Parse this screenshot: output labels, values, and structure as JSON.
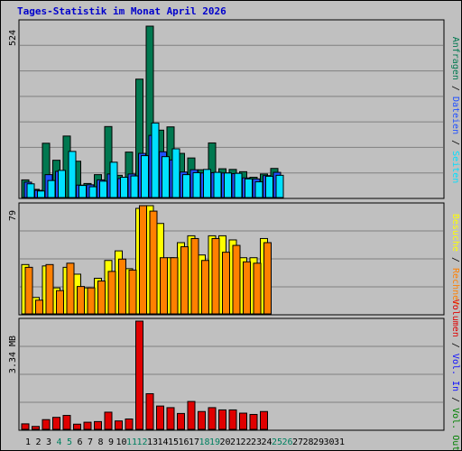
{
  "title": "Tages-Statistik im Monat April 2026",
  "chart_data": [
    {
      "type": "bar",
      "name": "requests-panel",
      "categories": [
        "1",
        "2",
        "3",
        "4",
        "5",
        "6",
        "7",
        "8",
        "9",
        "10",
        "11",
        "12",
        "13",
        "14",
        "15",
        "16",
        "17",
        "18",
        "19",
        "20",
        "21",
        "22",
        "23",
        "24",
        "25",
        "26",
        "27",
        "28",
        "29",
        "30",
        "31"
      ],
      "ymax_label": "524",
      "ymax": 524,
      "series": [
        {
          "name": "Anfragen",
          "color": "#007850",
          "values": [
            54,
            25,
            166,
            114,
            188,
            111,
            43,
            70,
            217,
            68,
            139,
            362,
            524,
            206,
            216,
            135,
            121,
            85,
            167,
            88,
            86,
            79,
            62,
            72,
            89,
            0,
            0,
            0,
            0,
            0,
            0
          ]
        },
        {
          "name": "Dateien",
          "color": "#2050ff",
          "values": [
            47,
            22,
            70,
            80,
            0,
            38,
            39,
            54,
            72,
            58,
            72,
            135,
            190,
            140,
            115,
            78,
            85,
            75,
            76,
            75,
            73,
            60,
            57,
            67,
            77,
            0,
            0,
            0,
            0,
            0,
            0
          ]
        },
        {
          "name": "Seiten",
          "color": "#00e0ff",
          "values": [
            42,
            20,
            52,
            83,
            141,
            37,
            33,
            50,
            108,
            62,
            66,
            128,
            228,
            125,
            149,
            70,
            76,
            86,
            77,
            75,
            74,
            57,
            48,
            65,
            68,
            0,
            0,
            0,
            0,
            0,
            0
          ]
        }
      ],
      "legend": [
        "Anfragen",
        "Dateien",
        "Seiten"
      ],
      "legend_colors": [
        "#007850",
        "#2050ff",
        "#00e0ff"
      ]
    },
    {
      "type": "bar",
      "name": "visits-panel",
      "ymax_label": "79",
      "ymax": 79,
      "series": [
        {
          "name": "Besuche",
          "color": "#ffff00",
          "values": [
            36,
            12,
            35,
            19,
            34,
            29,
            19,
            26,
            39,
            46,
            33,
            77,
            79,
            66,
            41,
            52,
            57,
            43,
            57,
            57,
            54,
            41,
            41,
            55,
            0,
            0,
            0,
            0,
            0,
            0,
            0
          ]
        },
        {
          "name": "Rechner",
          "color": "#ff8000",
          "values": [
            34,
            10,
            36,
            17,
            37,
            20,
            19,
            24,
            31,
            40,
            32,
            79,
            75,
            41,
            41,
            49,
            55,
            39,
            55,
            45,
            50,
            38,
            37,
            52,
            0,
            0,
            0,
            0,
            0,
            0,
            0
          ]
        }
      ],
      "legend": [
        "Besuche",
        "Rechner"
      ],
      "legend_colors": [
        "#ffff00",
        "#ff8000"
      ]
    },
    {
      "type": "bar",
      "name": "volume-panel",
      "ymax_label": "3.34 MB",
      "ymax": 3.34,
      "series": [
        {
          "name": "Volumen",
          "color": "#e00000",
          "values": [
            0.17,
            0.09,
            0.3,
            0.37,
            0.43,
            0.16,
            0.22,
            0.24,
            0.53,
            0.26,
            0.32,
            3.34,
            1.1,
            0.72,
            0.67,
            0.49,
            0.86,
            0.55,
            0.67,
            0.6,
            0.6,
            0.5,
            0.46,
            0.55,
            0,
            0,
            0,
            0,
            0,
            0,
            0
          ]
        }
      ],
      "legend": [
        "Volumen",
        "Vol. In",
        "Vol. Out"
      ],
      "legend_colors": [
        "#e00000",
        "#1010ff",
        "#008000"
      ]
    }
  ],
  "x_label_colors": [
    "#000000",
    "#000000",
    "#000000",
    "#008060",
    "#008060",
    "#000000",
    "#000000",
    "#000000",
    "#000000",
    "#000000",
    "#008060",
    "#008060",
    "#000000",
    "#000000",
    "#000000",
    "#000000",
    "#000000",
    "#008060",
    "#008060",
    "#000000",
    "#000000",
    "#000000",
    "#000000",
    "#000000",
    "#008060",
    "#008060",
    "#000000",
    "#000000",
    "#000000",
    "#000000",
    "#000000"
  ]
}
